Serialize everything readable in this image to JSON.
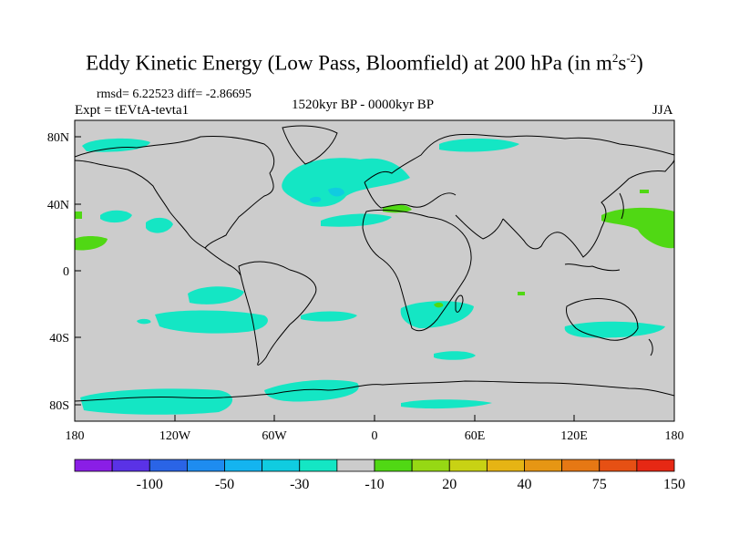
{
  "title": {
    "main": "Eddy Kinetic Energy (Low Pass, Bloomfield) at 200 hPa (in m",
    "sup1": "2",
    "mid": "s",
    "sup2": "-2",
    "end": ")"
  },
  "stats": "rmsd= 6.22523  diff= -2.86695",
  "experiment": "Expt = tEVtA-tevta1",
  "period": "1520kyr BP - 0000kyr BP",
  "season": "JJA",
  "lon_ticks": [
    "180",
    "120W",
    "60W",
    "0",
    "60E",
    "120E",
    "180"
  ],
  "lat_ticks": [
    "80N",
    "40N",
    "0",
    "40S",
    "80S"
  ],
  "colorbar": {
    "colors": [
      "#8a1ee6",
      "#5a32e6",
      "#2a64e6",
      "#1e8cf0",
      "#14b4f0",
      "#10cce0",
      "#14e6c4",
      "#cccccc",
      "#50d814",
      "#96d814",
      "#c8d214",
      "#e6b414",
      "#e69614",
      "#e67814",
      "#e65014",
      "#e62814"
    ],
    "labels": [
      "-100",
      "-50",
      "-30",
      "-10",
      "20",
      "40",
      "75",
      "150"
    ]
  },
  "colors": {
    "neutral": "#cccccc",
    "negative_small": "#14e6c4",
    "negative_medium": "#10cce0",
    "positive_small": "#50d814"
  }
}
